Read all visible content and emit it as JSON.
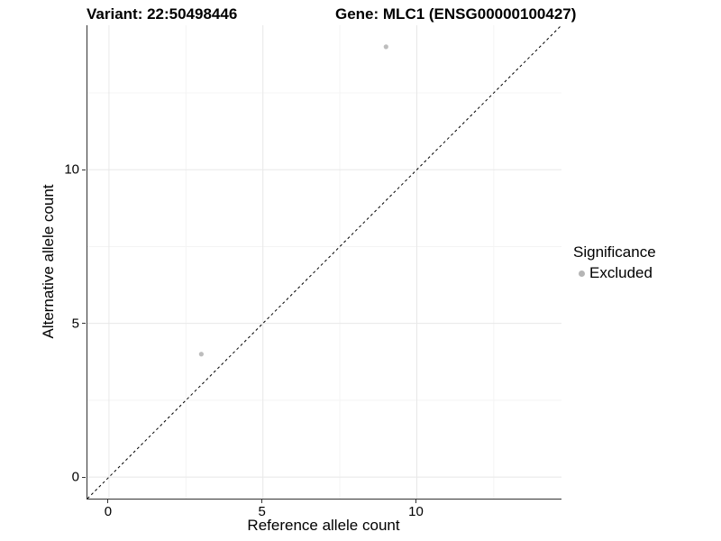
{
  "titles": {
    "variant": "Variant: 22:50498446",
    "gene": "Gene: MLC1 (ENSG00000100427)"
  },
  "chart_data": {
    "type": "scatter",
    "title_left": "Variant: 22:50498446",
    "title_right": "Gene: MLC1 (ENSG00000100427)",
    "xlabel": "Reference allele count",
    "ylabel": "Alternative allele count",
    "xlim": [
      -0.7,
      14.7
    ],
    "ylim": [
      -0.7,
      14.7
    ],
    "xticks": [
      0,
      5,
      10
    ],
    "yticks": [
      0,
      5,
      10
    ],
    "minor_ticks": [
      2.5,
      7.5,
      12.5
    ],
    "grid": true,
    "series": [
      {
        "name": "Excluded",
        "color": "#bdbdbd",
        "points": [
          {
            "x": 3,
            "y": 4
          },
          {
            "x": 9,
            "y": 14
          }
        ]
      }
    ],
    "reference_line": {
      "type": "identity",
      "style": "dashed",
      "color": "#000000"
    },
    "legend": {
      "title": "Significance",
      "position": "right",
      "items": [
        {
          "label": "Excluded",
          "color": "#b5b5b5"
        }
      ]
    }
  },
  "colors": {
    "axis_line": "#333333",
    "grid_major": "#e8e8e8",
    "grid_minor": "#f4f4f4",
    "point": "#bdbdbd",
    "reference_line": "#000000",
    "text": "#000000"
  }
}
